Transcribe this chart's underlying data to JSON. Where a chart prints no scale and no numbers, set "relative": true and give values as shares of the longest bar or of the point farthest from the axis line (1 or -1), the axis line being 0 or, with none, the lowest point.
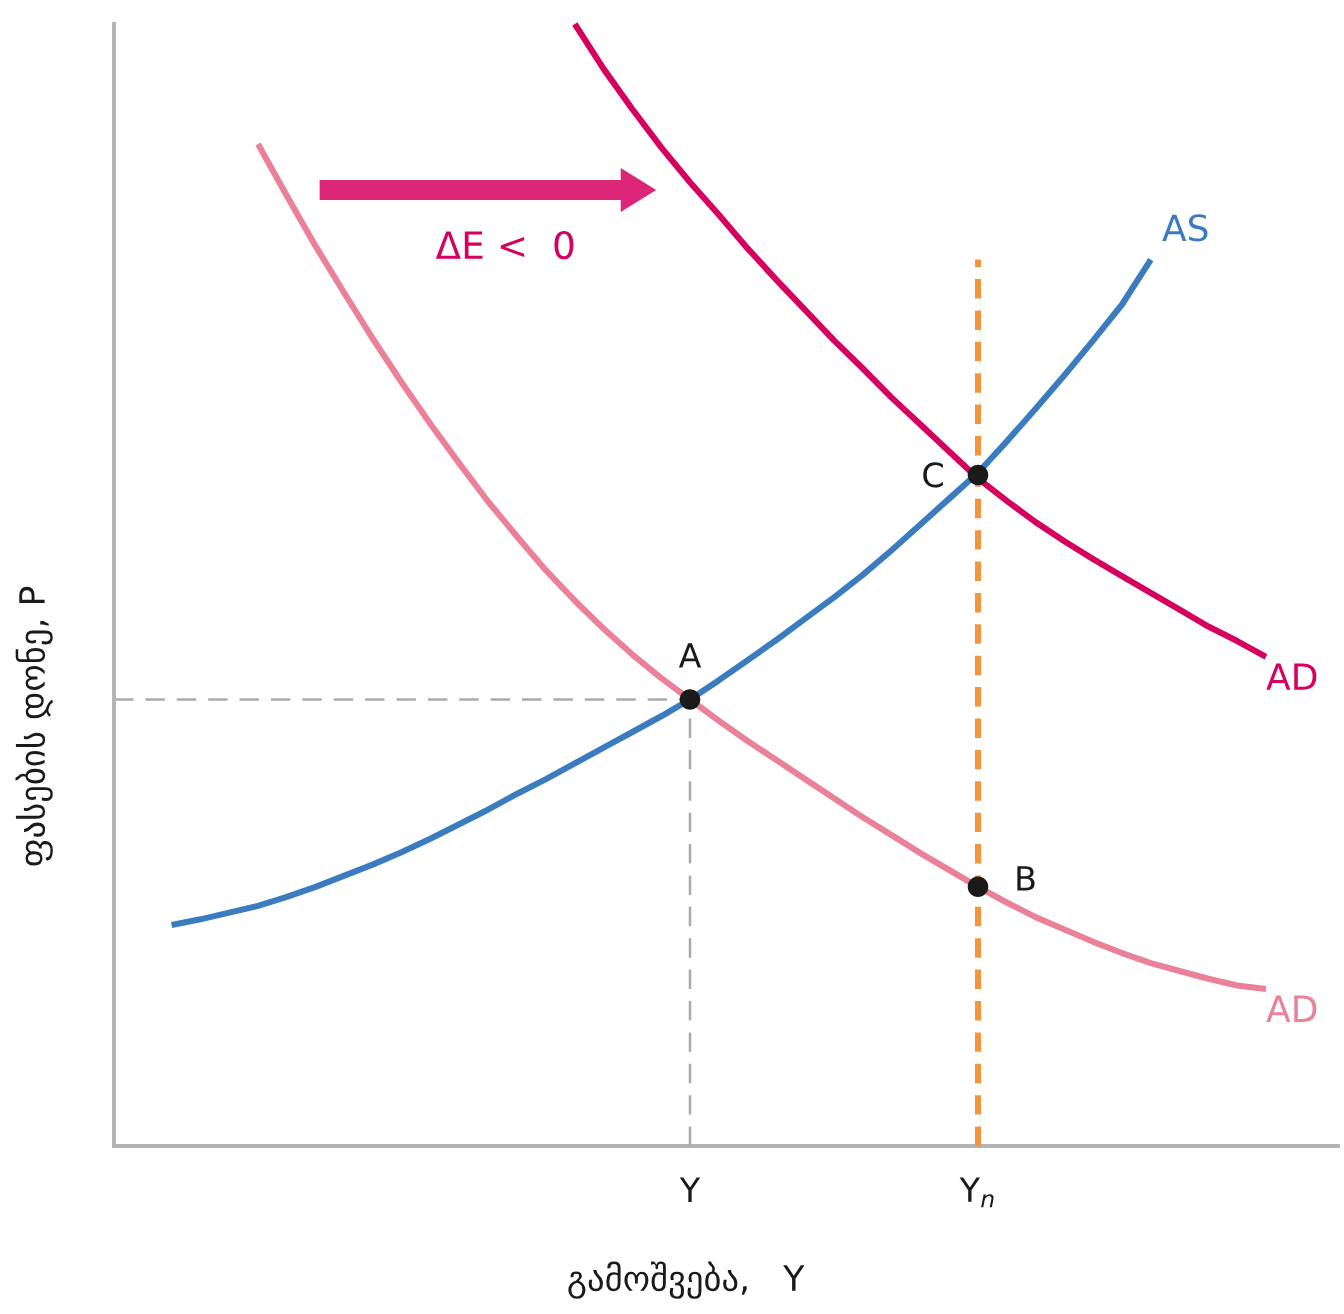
{
  "chart_data": {
    "type": "line",
    "relative": true,
    "xlabel": "გამოშვება,   Y",
    "ylabel": "ფასების დონე, P",
    "categories": [
      null,
      null,
      null,
      null,
      null,
      null,
      null,
      null,
      null,
      null,
      null,
      null,
      null,
      null,
      null,
      null,
      null,
      null,
      null,
      null,
      "Y",
      null,
      null,
      null,
      null,
      null,
      null,
      null,
      null,
      null,
      "Y$_{n}$",
      null,
      null,
      null,
      null,
      null,
      null,
      null,
      null,
      null,
      null,
      null,
      null
    ],
    "series": [
      {
        "color": "#aaaaaa",
        "line_style": "dashed",
        "values": [
          0.398,
          0.398,
          0.398,
          0.398,
          0.398,
          0.398,
          0.398,
          0.398,
          0.398,
          0.398,
          0.398,
          0.398,
          0.398,
          0.398,
          0.398,
          0.398,
          0.398,
          0.398,
          0.398,
          0.398,
          0.398,
          null,
          null,
          null,
          null,
          null,
          null,
          null,
          null,
          null,
          null,
          null,
          null,
          null,
          null,
          null,
          null,
          null,
          null,
          null,
          null,
          null,
          null
        ]
      },
      {
        "color": "#aaaaaa",
        "line_style": "dashed",
        "x": [
          "Y",
          "Y"
        ],
        "values": [
          0,
          0.398
        ]
      },
      {
        "name": "AS",
        "color": "#3b7bc0",
        "line_style": "solid",
        "values": [
          null,
          null,
          0.197,
          0.202,
          0.208,
          0.214,
          0.222,
          0.231,
          0.241,
          0.251,
          0.262,
          0.274,
          0.287,
          0.3,
          0.314,
          0.327,
          0.341,
          0.355,
          0.369,
          0.383,
          0.398,
          0.415,
          0.433,
          0.451,
          0.47,
          0.489,
          0.509,
          0.531,
          0.554,
          0.577,
          0.6,
          0.628,
          0.657,
          0.687,
          0.718,
          0.75,
          0.79,
          null,
          null,
          null,
          null,
          null,
          null
        ]
      },
      {
        "name": "AD",
        "color": "#ea8199",
        "line_style": "solid",
        "values": [
          null,
          null,
          null,
          null,
          null,
          0.893,
          0.847,
          0.802,
          0.76,
          0.719,
          0.68,
          0.643,
          0.608,
          0.574,
          0.543,
          0.513,
          0.486,
          0.461,
          0.438,
          0.417,
          0.398,
          0.379,
          0.361,
          0.344,
          0.327,
          0.31,
          0.293,
          0.277,
          0.261,
          0.246,
          0.231,
          0.217,
          0.204,
          0.193,
          0.182,
          0.172,
          0.163,
          0.156,
          0.149,
          0.143,
          0.14,
          null,
          null
        ]
      },
      {
        "name": "AD",
        "color": "#d6005f",
        "line_style": "solid",
        "values": [
          null,
          null,
          null,
          null,
          null,
          null,
          null,
          null,
          null,
          null,
          null,
          null,
          null,
          null,
          null,
          null,
          1.0,
          0.96,
          0.924,
          0.89,
          0.859,
          0.83,
          0.8,
          0.772,
          0.745,
          0.718,
          0.693,
          0.667,
          0.643,
          0.619,
          0.595,
          0.575,
          0.556,
          0.539,
          0.523,
          0.508,
          0.493,
          0.478,
          0.463,
          0.45,
          0.436,
          null,
          null
        ]
      },
      {
        "color": "#f4953d",
        "line_style": "dashed",
        "x": [
          "Y$_{n}$",
          "Y$_{n}$"
        ],
        "values": [
          0,
          0.79
        ]
      },
      {
        "type": "scatter",
        "color": "#1a1a1a",
        "marker": "circle",
        "x": [
          "Y",
          "Y$_{n}$",
          "Y$_{n}$"
        ],
        "values": [
          0.398,
          0.231,
          0.598
        ]
      }
    ],
    "annotations": [
      "ΔE <  0",
      {
        "text": "A",
        "x": "Y",
        "y": 0.398
      },
      {
        "text": "B",
        "x": "Y$_{n}$",
        "y": 0.231
      },
      {
        "text": "C",
        "x": "Y$_{n}$",
        "y": 0.598
      }
    ]
  }
}
